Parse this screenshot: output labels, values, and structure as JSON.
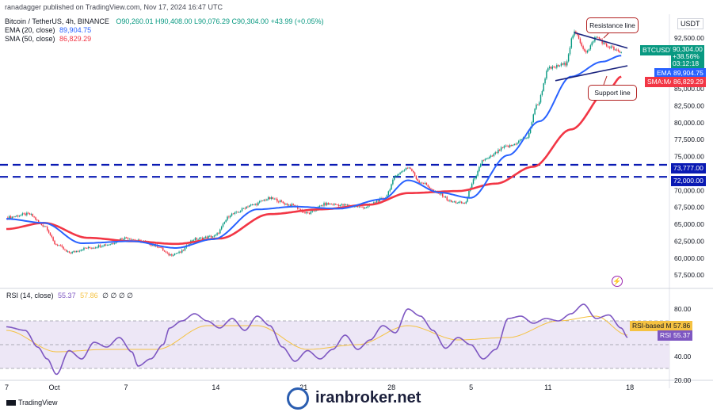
{
  "header": {
    "publisher": "ranadagger published on TradingView.com, Nov 17, 2024 16:47 UTC",
    "symbol_line": "Bitcoin / TetherUS, 4h, BINANCE",
    "ohlc": "O90,260.01 H90,408.00 L90,076.29 C90,304.00 +43.99 (+0.05%)",
    "ema_label": "EMA (20, close)",
    "ema_value": "89,904.75",
    "sma_label": "SMA (50, close)",
    "sma_value": "86,829.29",
    "rsi_label": "RSI (14, close)",
    "rsi_value": "55.37",
    "rsi_ma_value": "57.86",
    "rsi_extra": "∅ ∅ ∅ ∅"
  },
  "currency": "USDT",
  "price_tags": {
    "symbol": "BTCUSDT",
    "last": "90,304.00",
    "change": "+38.56%",
    "timer": "03:12:18",
    "ema_tag": "EMA",
    "ema": "89,904.75",
    "sma_tag": "SMA:MA",
    "sma": "86,829.29",
    "level_high": "73,777.00",
    "level_low": "72,000.00",
    "rsi_ma_tag": "RSI-based MA",
    "rsi_ma": "57.86",
    "rsi_tag": "RSI",
    "rsi": "55.37"
  },
  "annotations": {
    "resistance": "Resistance line",
    "support": "Support line"
  },
  "footer": {
    "tv_brand": "TradingView",
    "watermark": "iranbroker.net"
  },
  "colors": {
    "candle_up": "#089981",
    "candle_down": "#f23645",
    "ema": "#2962ff",
    "sma": "#f23645",
    "levels": "#0a1ab3",
    "rsi": "#7e57c2",
    "rsi_ma": "#f5c242",
    "rsi_band": "#ede7f6",
    "ann_border": "#b22222"
  },
  "chart_data": {
    "type": "candlestick",
    "timeframe": "4h",
    "x_tick_labels": [
      "7",
      "Oct",
      "7",
      "14",
      "21",
      "28",
      "5",
      "11",
      "18"
    ],
    "y_tick_labels": [
      "92,500.00",
      "87,500.00",
      "85,000.00",
      "82,500.00",
      "80,000.00",
      "77,500.00",
      "75,000.00",
      "70,000.00",
      "67,500.00",
      "65,000.00",
      "62,500.00",
      "60,000.00",
      "57,500.00"
    ],
    "ylim": [
      56000,
      96000
    ],
    "horizontal_levels": [
      73777,
      72000
    ],
    "price_anchors": [
      [
        0,
        66000
      ],
      [
        0.035,
        66500
      ],
      [
        0.06,
        64800
      ],
      [
        0.08,
        62000
      ],
      [
        0.1,
        60800
      ],
      [
        0.13,
        61500
      ],
      [
        0.16,
        62000
      ],
      [
        0.19,
        63000
      ],
      [
        0.215,
        62500
      ],
      [
        0.24,
        61800
      ],
      [
        0.26,
        60500
      ],
      [
        0.275,
        60800
      ],
      [
        0.3,
        62800
      ],
      [
        0.33,
        63200
      ],
      [
        0.36,
        66500
      ],
      [
        0.39,
        67800
      ],
      [
        0.42,
        68800
      ],
      [
        0.455,
        67800
      ],
      [
        0.48,
        66600
      ],
      [
        0.51,
        68000
      ],
      [
        0.54,
        67800
      ],
      [
        0.57,
        67500
      ],
      [
        0.6,
        68700
      ],
      [
        0.625,
        72500
      ],
      [
        0.64,
        73400
      ],
      [
        0.66,
        71200
      ],
      [
        0.69,
        69500
      ],
      [
        0.71,
        68300
      ],
      [
        0.73,
        68100
      ],
      [
        0.745,
        71500
      ],
      [
        0.76,
        74500
      ],
      [
        0.8,
        76500
      ],
      [
        0.83,
        77800
      ],
      [
        0.845,
        82500
      ],
      [
        0.865,
        88000
      ],
      [
        0.89,
        88600
      ],
      [
        0.905,
        93200
      ],
      [
        0.925,
        90500
      ],
      [
        0.94,
        92600
      ],
      [
        0.96,
        91200
      ],
      [
        0.98,
        90300
      ]
    ],
    "ema_anchors": [
      [
        0,
        65800
      ],
      [
        0.06,
        65200
      ],
      [
        0.12,
        62200
      ],
      [
        0.2,
        62500
      ],
      [
        0.27,
        61500
      ],
      [
        0.33,
        62800
      ],
      [
        0.4,
        67200
      ],
      [
        0.46,
        67600
      ],
      [
        0.53,
        67300
      ],
      [
        0.6,
        68700
      ],
      [
        0.64,
        71500
      ],
      [
        0.69,
        69700
      ],
      [
        0.74,
        68900
      ],
      [
        0.8,
        75200
      ],
      [
        0.85,
        80200
      ],
      [
        0.9,
        86800
      ],
      [
        0.95,
        89000
      ],
      [
        0.98,
        89900
      ]
    ],
    "sma_anchors": [
      [
        0,
        64300
      ],
      [
        0.06,
        65200
      ],
      [
        0.13,
        63000
      ],
      [
        0.2,
        62500
      ],
      [
        0.27,
        62100
      ],
      [
        0.34,
        62900
      ],
      [
        0.42,
        66500
      ],
      [
        0.5,
        67200
      ],
      [
        0.58,
        67900
      ],
      [
        0.64,
        69600
      ],
      [
        0.72,
        69900
      ],
      [
        0.78,
        71000
      ],
      [
        0.84,
        73500
      ],
      [
        0.9,
        79000
      ],
      [
        0.96,
        84900
      ],
      [
        0.98,
        86800
      ]
    ],
    "rsi_ylim": [
      20,
      88
    ],
    "rsi_levels": [
      70,
      50,
      30
    ],
    "rsi_tick_labels": [
      "80.00",
      "60.00",
      "40.00",
      "20.00"
    ],
    "rsi_anchors": [
      [
        0,
        65
      ],
      [
        0.03,
        62
      ],
      [
        0.05,
        48
      ],
      [
        0.065,
        38
      ],
      [
        0.08,
        25
      ],
      [
        0.1,
        45
      ],
      [
        0.12,
        38
      ],
      [
        0.14,
        52
      ],
      [
        0.16,
        48
      ],
      [
        0.18,
        56
      ],
      [
        0.2,
        44
      ],
      [
        0.21,
        32
      ],
      [
        0.23,
        38
      ],
      [
        0.25,
        50
      ],
      [
        0.26,
        64
      ],
      [
        0.28,
        70
      ],
      [
        0.3,
        76
      ],
      [
        0.32,
        70
      ],
      [
        0.34,
        64
      ],
      [
        0.36,
        72
      ],
      [
        0.38,
        62
      ],
      [
        0.4,
        74
      ],
      [
        0.42,
        66
      ],
      [
        0.44,
        48
      ],
      [
        0.46,
        36
      ],
      [
        0.48,
        45
      ],
      [
        0.5,
        38
      ],
      [
        0.52,
        46
      ],
      [
        0.54,
        58
      ],
      [
        0.56,
        46
      ],
      [
        0.58,
        54
      ],
      [
        0.6,
        66
      ],
      [
        0.62,
        60
      ],
      [
        0.64,
        80
      ],
      [
        0.66,
        74
      ],
      [
        0.68,
        62
      ],
      [
        0.7,
        47
      ],
      [
        0.72,
        56
      ],
      [
        0.74,
        50
      ],
      [
        0.76,
        38
      ],
      [
        0.78,
        46
      ],
      [
        0.8,
        72
      ],
      [
        0.82,
        74
      ],
      [
        0.84,
        68
      ],
      [
        0.86,
        72
      ],
      [
        0.88,
        70
      ],
      [
        0.9,
        76
      ],
      [
        0.92,
        84
      ],
      [
        0.94,
        72
      ],
      [
        0.96,
        75
      ],
      [
        0.98,
        64
      ],
      [
        0.99,
        56
      ]
    ],
    "rsi_ma_anchors": [
      [
        0,
        62
      ],
      [
        0.08,
        44
      ],
      [
        0.16,
        46
      ],
      [
        0.24,
        46
      ],
      [
        0.32,
        66
      ],
      [
        0.4,
        66
      ],
      [
        0.48,
        46
      ],
      [
        0.56,
        50
      ],
      [
        0.64,
        66
      ],
      [
        0.72,
        54
      ],
      [
        0.8,
        56
      ],
      [
        0.88,
        70
      ],
      [
        0.94,
        74
      ],
      [
        0.99,
        58
      ]
    ]
  }
}
